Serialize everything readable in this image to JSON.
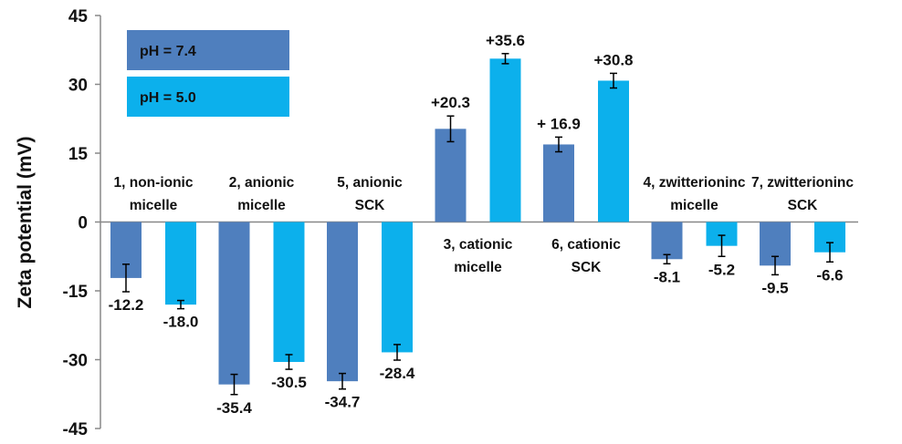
{
  "chart_data": {
    "type": "bar",
    "title": "",
    "xlabel": "",
    "ylabel": "Zeta potential (mV)",
    "ylim": [
      -45,
      45
    ],
    "yticks": [
      45,
      30,
      15,
      0,
      -15,
      -30,
      -45
    ],
    "grid": false,
    "legend_position": "top-left",
    "categories": [
      {
        "lines": [
          "1, non-ionic",
          "micelle"
        ],
        "label_side": "above"
      },
      {
        "lines": [
          "2, anionic",
          "micelle"
        ],
        "label_side": "above"
      },
      {
        "lines": [
          "5, anionic",
          "SCK"
        ],
        "label_side": "above"
      },
      {
        "lines": [
          "3, cationic",
          "micelle"
        ],
        "label_side": "below"
      },
      {
        "lines": [
          "6, cationic",
          "SCK"
        ],
        "label_side": "below"
      },
      {
        "lines": [
          "4, zwitterioninc",
          "micelle"
        ],
        "label_side": "above"
      },
      {
        "lines": [
          "7, zwitterioninc",
          "SCK"
        ],
        "label_side": "above"
      }
    ],
    "series": [
      {
        "name": "pH = 7.4",
        "color": "#4f7fbe",
        "values": [
          -12.2,
          -35.4,
          -34.7,
          20.3,
          16.9,
          -8.1,
          -9.5
        ],
        "errors": [
          3.0,
          2.2,
          1.7,
          2.8,
          1.6,
          1.0,
          2.0
        ],
        "labels": [
          "-12.2",
          "-35.4",
          "-34.7",
          "+20.3",
          "+ 16.9",
          "-8.1",
          "-9.5"
        ]
      },
      {
        "name": "pH = 5.0",
        "color": "#0cb0ec",
        "values": [
          -18.0,
          -30.5,
          -28.4,
          35.6,
          30.8,
          -5.2,
          -6.6
        ],
        "errors": [
          0.9,
          1.6,
          1.7,
          1.1,
          1.6,
          2.3,
          2.1
        ],
        "labels": [
          "-18.0",
          "-30.5",
          "-28.4",
          "+35.6",
          "+30.8",
          "-5.2",
          "-6.6"
        ]
      }
    ]
  }
}
